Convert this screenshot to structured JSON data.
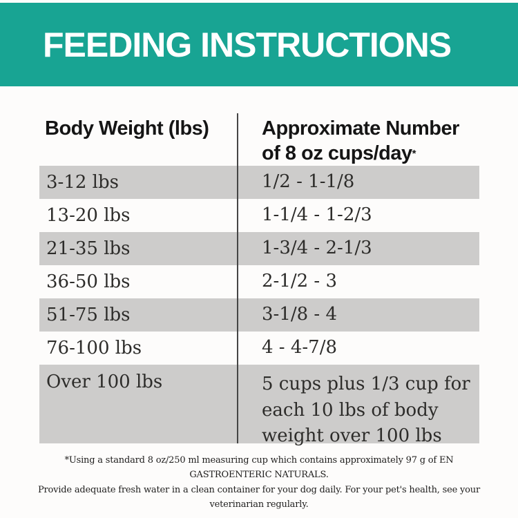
{
  "banner": {
    "title": "FEEDING INSTRUCTIONS",
    "bg_color": "#18a493",
    "text_color": "#ffffff"
  },
  "table": {
    "col1_header": "Body Weight (lbs)",
    "col2_header_line1": "Approximate Number",
    "col2_header_line2": "of 8 oz cups/day",
    "col2_header_footnote_mark": "*",
    "row_shade_color": "#cdcccb",
    "rows": [
      {
        "weight": "3-12 lbs",
        "cups": "1/2 - 1-1/8"
      },
      {
        "weight": "13-20 lbs",
        "cups": "1-1/4 - 1-2/3"
      },
      {
        "weight": "21-35 lbs",
        "cups": "1-3/4 - 2-1/3"
      },
      {
        "weight": "36-50 lbs",
        "cups": "2-1/2 - 3"
      },
      {
        "weight": "51-75 lbs",
        "cups": "3-1/8 - 4"
      },
      {
        "weight": "76-100 lbs",
        "cups": "4 - 4-7/8"
      },
      {
        "weight": "Over 100 lbs",
        "cups": "5 cups plus 1/3 cup for each 10 lbs of body weight over 100 lbs"
      }
    ]
  },
  "footnote": {
    "line1": "*Using a standard 8 oz/250 ml measuring cup which contains approximately 97 g of EN GASTROENTERIC NATURALS.",
    "line2": "Provide adequate fresh water in a clean container for your dog daily. For your pet's health, see your veterinarian regularly."
  }
}
